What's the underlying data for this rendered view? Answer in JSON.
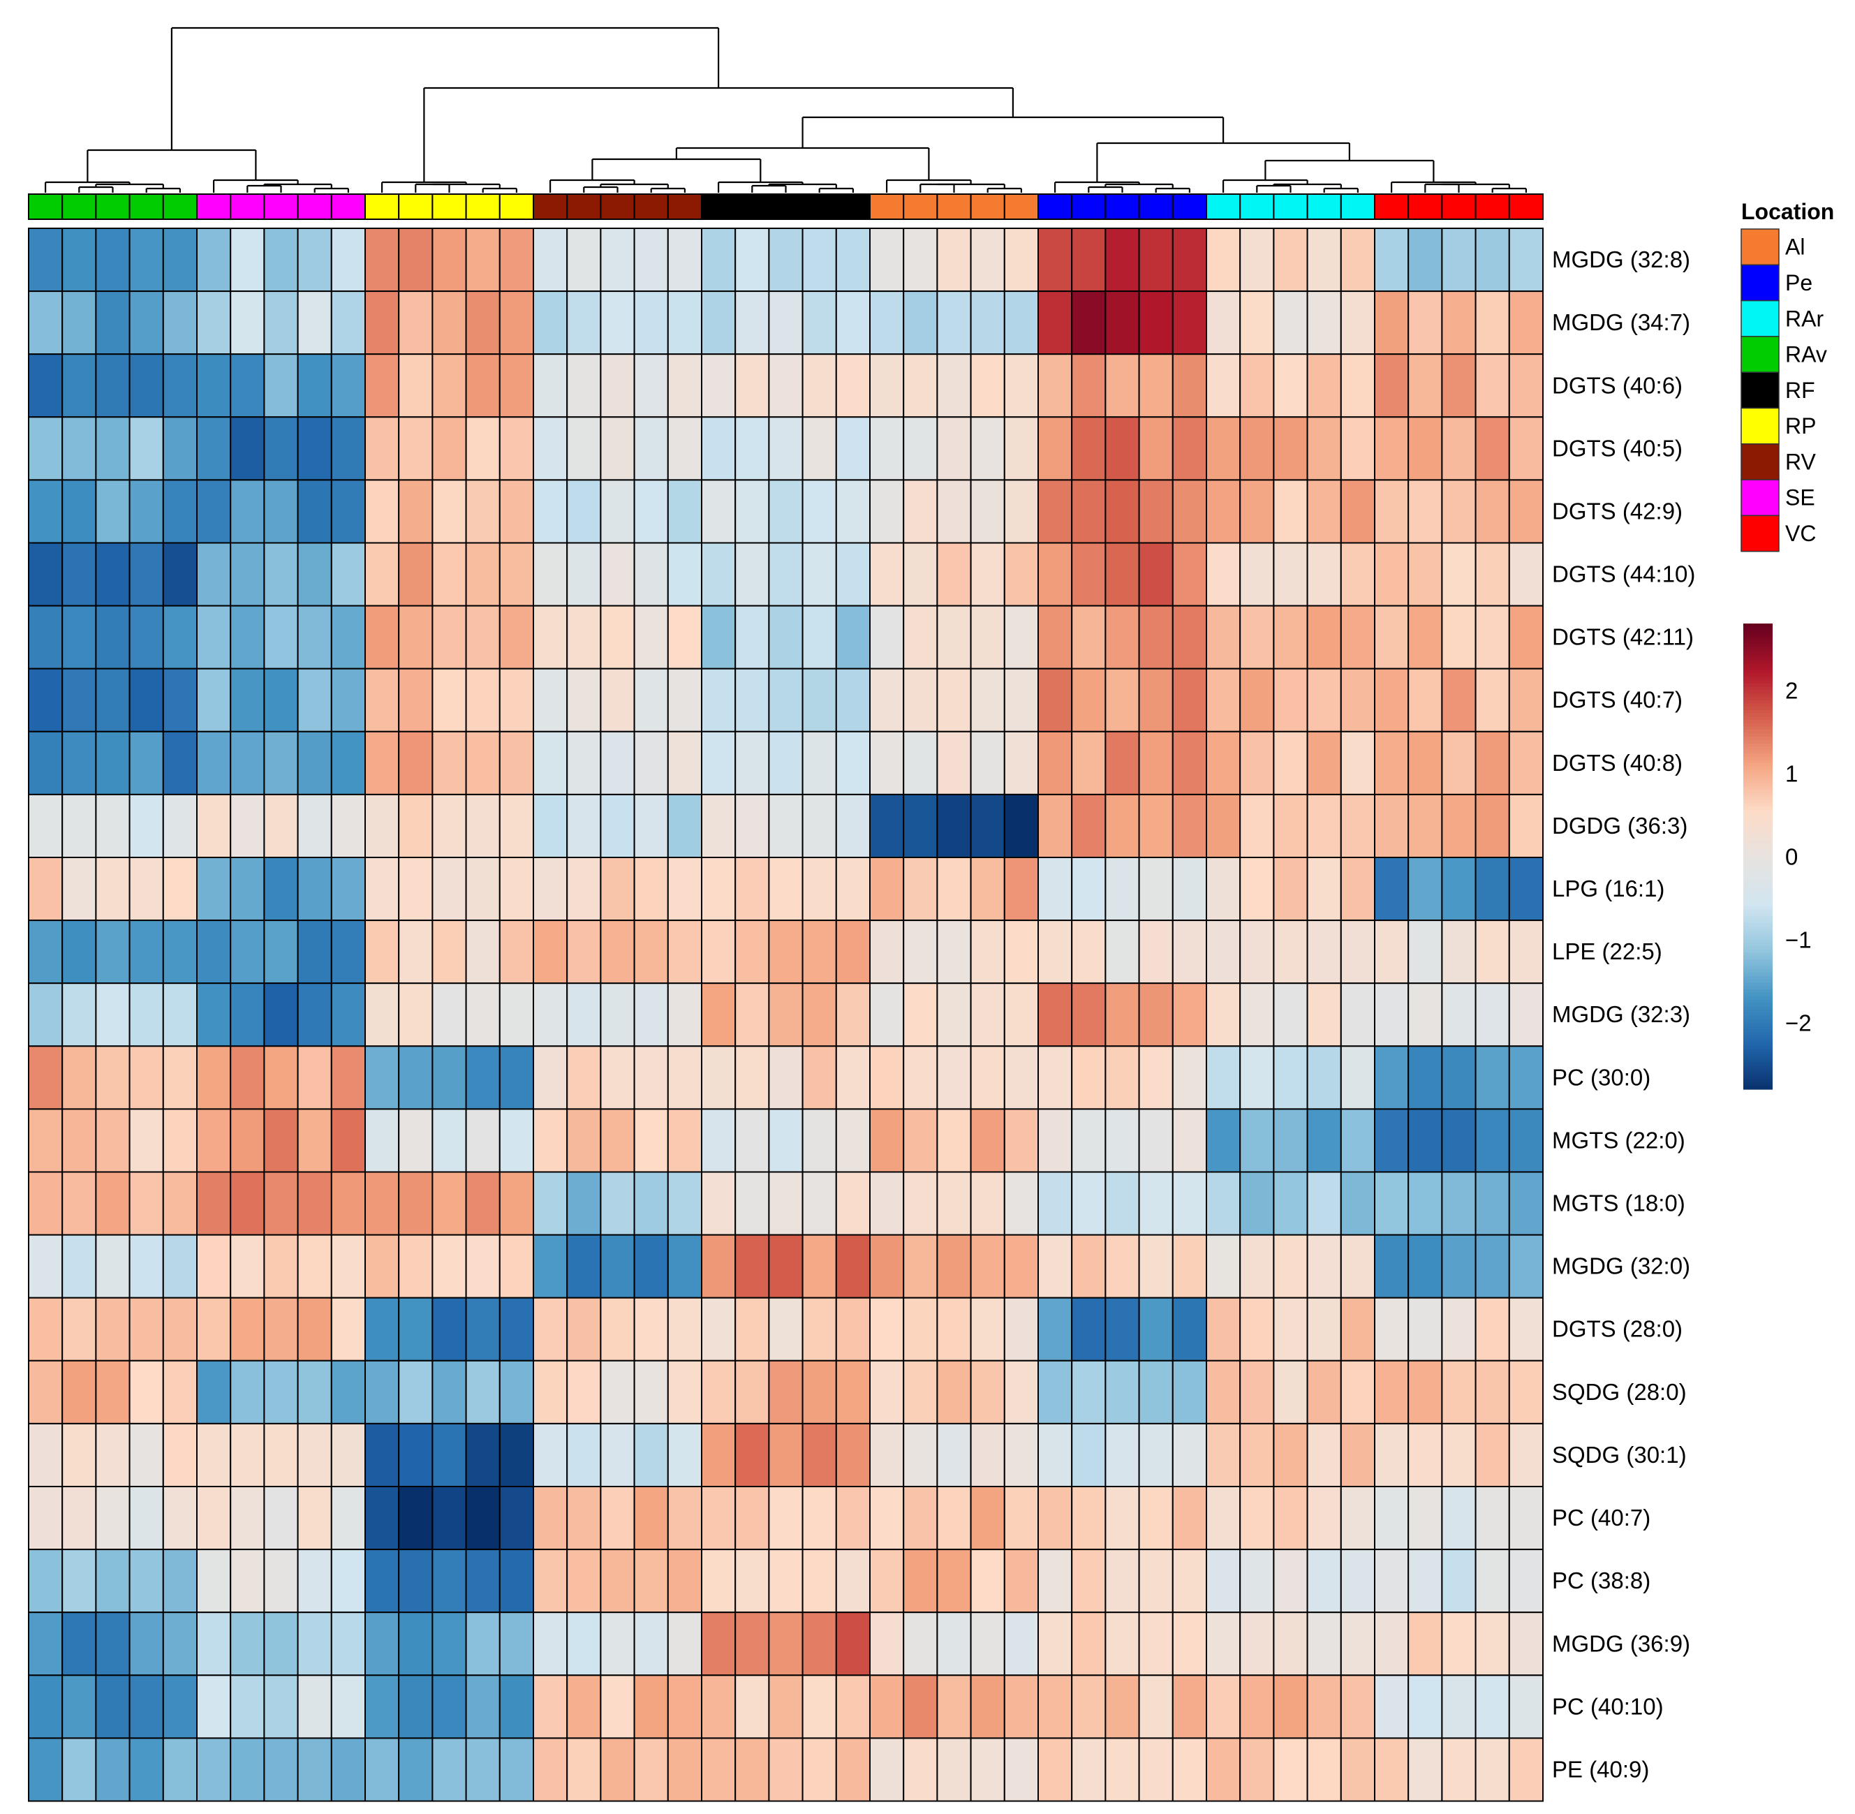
{
  "chart_data": {
    "type": "heatmap",
    "title": "",
    "rows": [
      "MGDG (32:8)",
      "MGDG (34:7)",
      "DGTS (40:6)",
      "DGTS (40:5)",
      "DGTS (42:9)",
      "DGTS (44:10)",
      "DGTS (42:11)",
      "DGTS (40:7)",
      "DGTS (40:8)",
      "DGDG (36:3)",
      "LPG (16:1)",
      "LPE (22:5)",
      "MGDG (32:3)",
      "PC (30:0)",
      "MGTS (22:0)",
      "MGTS (18:0)",
      "MGDG (32:0)",
      "DGTS (28:0)",
      "SQDG (28:0)",
      "SQDG (30:1)",
      "PC (40:7)",
      "PC (38:8)",
      "MGDG (36:9)",
      "PC (40:10)",
      "PE (40:9)"
    ],
    "column_groups": [
      "RAv",
      "SE",
      "RP",
      "RV",
      "RF",
      "Al",
      "Pe",
      "RAr",
      "VC"
    ],
    "group_block_means": [
      [
        -1.5,
        -0.9,
        1.2,
        -0.5,
        -0.7,
        0.1,
        2.0,
        0.5,
        -1.0
      ],
      [
        -1.5,
        -0.7,
        1.2,
        -0.6,
        -0.6,
        -0.8,
        2.2,
        0.3,
        1.0
      ],
      [
        -1.9,
        -1.5,
        0.9,
        -0.1,
        0.2,
        0.3,
        1.2,
        0.8,
        1.0
      ],
      [
        -1.2,
        -2.0,
        0.6,
        -0.2,
        -0.3,
        0.0,
        1.4,
        0.9,
        1.0
      ],
      [
        -1.6,
        -1.7,
        0.8,
        -0.6,
        -0.4,
        0.1,
        1.5,
        0.9,
        1.0
      ],
      [
        -2.3,
        -1.1,
        0.9,
        -0.3,
        -0.4,
        0.6,
        1.5,
        0.5,
        0.5
      ],
      [
        -2.0,
        -1.3,
        1.0,
        0.3,
        -0.9,
        0.2,
        1.3,
        0.8,
        0.9
      ],
      [
        -2.0,
        -1.4,
        0.9,
        0.1,
        -0.6,
        0.4,
        1.2,
        0.8,
        0.9
      ],
      [
        -1.8,
        -1.6,
        0.9,
        -0.1,
        -0.4,
        0.1,
        1.2,
        0.8,
        0.9
      ],
      [
        -0.2,
        0.1,
        0.6,
        -0.7,
        -0.1,
        -2.6,
        1.1,
        0.9,
        0.9
      ],
      [
        0.5,
        -1.6,
        0.5,
        0.5,
        0.8,
        0.9,
        -0.3,
        0.5,
        -1.8
      ],
      [
        -1.8,
        -1.8,
        0.5,
        1.0,
        0.8,
        0.4,
        0.2,
        0.3,
        0.1
      ],
      [
        -0.8,
        -2.0,
        0.2,
        -0.3,
        1.0,
        0.2,
        1.3,
        0.2,
        -0.3
      ],
      [
        1.0,
        1.1,
        -1.6,
        0.4,
        0.5,
        0.4,
        0.4,
        -0.6,
        -1.8
      ],
      [
        0.7,
        1.2,
        -0.2,
        0.6,
        -0.2,
        0.9,
        0.1,
        -1.4,
        -2.0
      ],
      [
        1.0,
        1.3,
        1.0,
        -1.2,
        0.2,
        0.3,
        -0.5,
        -1.0,
        -1.3
      ],
      [
        -0.6,
        0.6,
        0.7,
        -1.8,
        1.4,
        1.2,
        0.5,
        0.2,
        -1.5
      ],
      [
        0.9,
        0.8,
        -1.9,
        0.6,
        0.5,
        0.3,
        -1.8,
        0.6,
        0.3
      ],
      [
        0.8,
        -1.3,
        -1.2,
        0.3,
        1.0,
        0.6,
        -1.2,
        0.6,
        0.7
      ],
      [
        0.3,
        0.1,
        -2.3,
        -0.6,
        1.4,
        0.1,
        -0.5,
        0.6,
        0.5
      ],
      [
        0.0,
        0.1,
        -2.6,
        0.8,
        0.7,
        0.8,
        0.6,
        0.5,
        -0.2
      ],
      [
        -1.2,
        -0.2,
        -2.2,
        0.7,
        0.5,
        0.9,
        0.4,
        -0.2,
        -0.4
      ],
      [
        -1.7,
        -0.9,
        -1.4,
        -0.4,
        1.6,
        0.0,
        0.5,
        0.3,
        0.4
      ],
      [
        -1.7,
        -0.6,
        -1.5,
        0.8,
        0.6,
        1.0,
        0.7,
        0.8,
        -0.4
      ],
      [
        -1.4,
        -1.4,
        -1.3,
        0.9,
        0.8,
        0.2,
        0.6,
        0.6,
        0.5
      ]
    ],
    "samples_per_group": 5,
    "color_scale": {
      "title": "",
      "ticks": [
        2,
        1,
        0,
        -1,
        -2
      ],
      "tick_labels": [
        "2",
        "1",
        "0",
        "−1",
        "−2"
      ],
      "range": [
        -2.8,
        2.8
      ],
      "colors": [
        "#08306b",
        "#2166ac",
        "#4393c3",
        "#92c5de",
        "#d1e5f0",
        "#e7e3e0",
        "#fddbc7",
        "#f4a582",
        "#d6604d",
        "#b2182b",
        "#67001f"
      ]
    },
    "legend": {
      "title": "Location",
      "position": "right",
      "items": [
        {
          "label": "Al",
          "color": "#f47b30"
        },
        {
          "label": "Pe",
          "color": "#0000ff"
        },
        {
          "label": "RAr",
          "color": "#00f5f5"
        },
        {
          "label": "RAv",
          "color": "#00cc00"
        },
        {
          "label": "RF",
          "color": "#000000"
        },
        {
          "label": "RP",
          "color": "#ffff00"
        },
        {
          "label": "RV",
          "color": "#8b1a00"
        },
        {
          "label": "SE",
          "color": "#ff00ff"
        },
        {
          "label": "VC",
          "color": "#ff0000"
        }
      ]
    },
    "dendrogram": "column clustering tree grouping RAv+SE, RP, RV, RF, Al, Pe, RAr, VC"
  }
}
